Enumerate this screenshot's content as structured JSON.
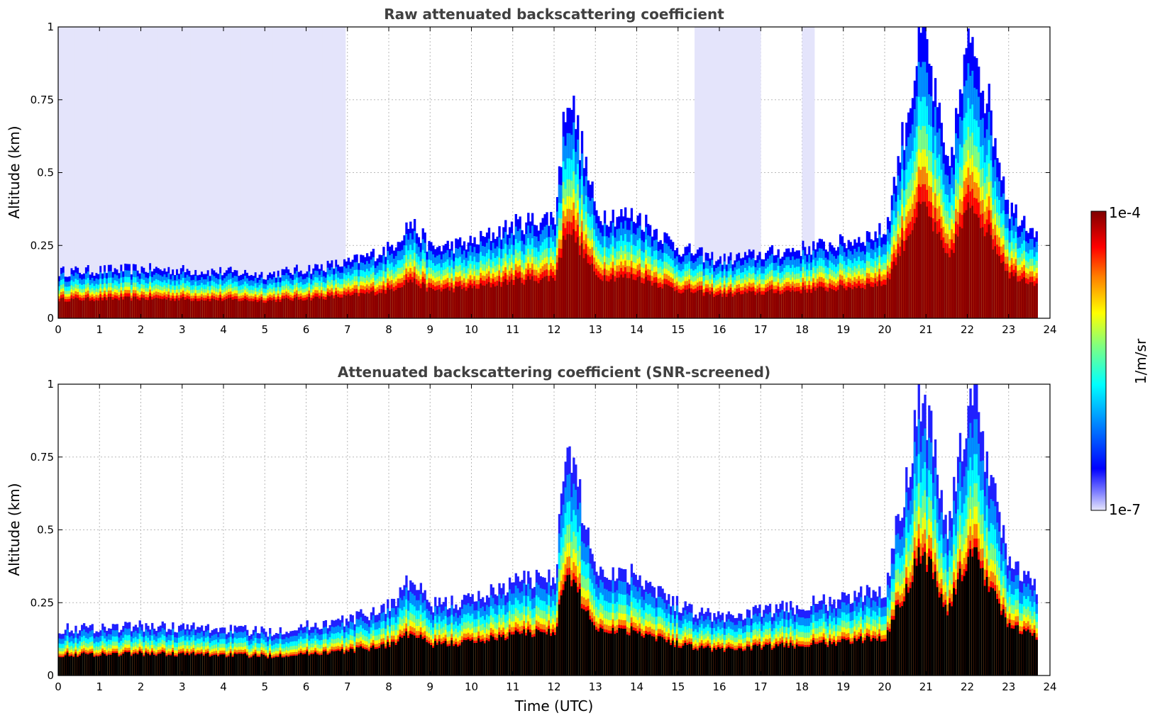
{
  "chart_data": [
    {
      "type": "heatmap",
      "title": "Raw attenuated backscattering coefficient",
      "xlabel": "",
      "ylabel": "Altitude (km)",
      "xlim": [
        0,
        24
      ],
      "ylim": [
        0,
        1
      ],
      "x_ticks": [
        "0",
        "1",
        "2",
        "3",
        "4",
        "5",
        "6",
        "7",
        "8",
        "9",
        "10",
        "11",
        "12",
        "13",
        "14",
        "15",
        "16",
        "17",
        "18",
        "19",
        "20",
        "21",
        "22",
        "23",
        "24"
      ],
      "y_ticks": [
        "0",
        "0.25",
        "0.5",
        "0.75",
        "1"
      ],
      "grid": true,
      "screened": false,
      "layer_top_km": [
        {
          "t": 0,
          "top": 0.16
        },
        {
          "t": 2,
          "top": 0.17
        },
        {
          "t": 4,
          "top": 0.16
        },
        {
          "t": 5,
          "top": 0.15
        },
        {
          "t": 6,
          "top": 0.17
        },
        {
          "t": 7,
          "top": 0.19
        },
        {
          "t": 8,
          "top": 0.24
        },
        {
          "t": 8.5,
          "top": 0.33
        },
        {
          "t": 9,
          "top": 0.24
        },
        {
          "t": 10,
          "top": 0.26
        },
        {
          "t": 11,
          "top": 0.32
        },
        {
          "t": 12,
          "top": 0.35
        },
        {
          "t": 12.3,
          "top": 0.8
        },
        {
          "t": 13,
          "top": 0.36
        },
        {
          "t": 14,
          "top": 0.35
        },
        {
          "t": 15,
          "top": 0.24
        },
        {
          "t": 16,
          "top": 0.2
        },
        {
          "t": 17,
          "top": 0.22
        },
        {
          "t": 18,
          "top": 0.24
        },
        {
          "t": 19,
          "top": 0.26
        },
        {
          "t": 20,
          "top": 0.3
        },
        {
          "t": 20.9,
          "top": 1.0
        },
        {
          "t": 21.5,
          "top": 0.5
        },
        {
          "t": 22.1,
          "top": 1.0
        },
        {
          "t": 23,
          "top": 0.38
        },
        {
          "t": 23.7,
          "top": 0.3
        }
      ],
      "data_end_hour": 23.7
    },
    {
      "type": "heatmap",
      "title": "Attenuated backscattering coefficient (SNR-screened)",
      "xlabel": "Time (UTC)",
      "ylabel": "Altitude (km)",
      "xlim": [
        0,
        24
      ],
      "ylim": [
        0,
        1
      ],
      "x_ticks": [
        "0",
        "1",
        "2",
        "3",
        "4",
        "5",
        "6",
        "7",
        "8",
        "9",
        "10",
        "11",
        "12",
        "13",
        "14",
        "15",
        "16",
        "17",
        "18",
        "19",
        "20",
        "21",
        "22",
        "23",
        "24"
      ],
      "y_ticks": [
        "0",
        "0.25",
        "0.5",
        "0.75",
        "1"
      ],
      "grid": true,
      "screened": true,
      "data_end_hour": 23.7
    }
  ],
  "colorbar": {
    "max_label": "1e-4",
    "min_label": "1e-7",
    "units": "1/m/sr",
    "colors": [
      "#7f0000",
      "#ff0000",
      "#ff7f00",
      "#ffff00",
      "#7fff7f",
      "#00ffff",
      "#007fff",
      "#0000ff",
      "#e0e0ff"
    ]
  }
}
